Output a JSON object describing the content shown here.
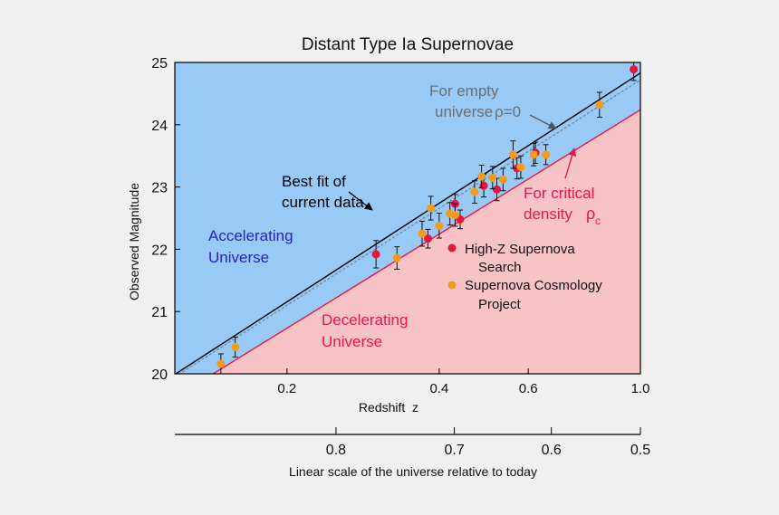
{
  "chart_data": {
    "type": "scatter",
    "title": "Distant Type Ia Supernovae",
    "xlabel": "Redshift  z",
    "ylabel": "Observed Magnitude",
    "x_scale": "log",
    "xlim": [
      0.12,
      1.0
    ],
    "ylim": [
      20,
      25
    ],
    "x_ticks": [
      0.2,
      0.4,
      0.6,
      1.0
    ],
    "x_tick_labels": [
      "0.2",
      "0.4",
      "0.6",
      "1.0"
    ],
    "y_ticks": [
      20,
      21,
      22,
      23,
      24,
      25
    ],
    "y_tick_labels": [
      "20",
      "21",
      "22",
      "23",
      "24",
      "25"
    ],
    "secondary_axis": {
      "label": "Linear scale of the universe relative to today",
      "ticks": [
        0.8,
        0.7,
        0.6,
        0.5
      ],
      "tick_labels": [
        "0.8",
        "0.7",
        "0.6",
        "0.5"
      ]
    },
    "colors": {
      "accelerating": "#99c9f5",
      "decelerating": "#f8c3c5",
      "best_fit": "#000000",
      "empty_universe": "#6b8aa0",
      "critical_density": "#e8174a",
      "high_z": "#e6163f",
      "scp": "#f39c1c",
      "accelerating_text": "#2a21c8",
      "decelerating_text": "#e8174a",
      "empty_text": "#6e6e6e"
    },
    "lines": [
      {
        "key": "best_fit",
        "points": [
          [
            0.12,
            19.99
          ],
          [
            1.0,
            24.83
          ]
        ]
      },
      {
        "key": "empty_universe",
        "points": [
          [
            0.12,
            19.95
          ],
          [
            1.0,
            24.72
          ]
        ]
      },
      {
        "key": "critical_density",
        "points": [
          [
            0.12,
            19.62
          ],
          [
            1.0,
            24.24
          ]
        ]
      }
    ],
    "series": [
      {
        "key": "high_z",
        "name": "High-Z Supernova\nSearch",
        "points": [
          {
            "x": 0.3,
            "y": 21.92,
            "err": 0.22
          },
          {
            "x": 0.38,
            "y": 22.17,
            "err": 0.15
          },
          {
            "x": 0.43,
            "y": 22.73,
            "err": 0.15
          },
          {
            "x": 0.44,
            "y": 22.48,
            "err": 0.15
          },
          {
            "x": 0.49,
            "y": 23.02,
            "err": 0.18
          },
          {
            "x": 0.52,
            "y": 22.96,
            "err": 0.18
          },
          {
            "x": 0.57,
            "y": 23.3,
            "err": 0.17
          },
          {
            "x": 0.62,
            "y": 23.55,
            "err": 0.17
          },
          {
            "x": 0.97,
            "y": 24.89,
            "err": 0.18
          }
        ]
      },
      {
        "key": "scp",
        "name": "Supernova Cosmology\nProject",
        "points": [
          {
            "x": 0.148,
            "y": 20.16,
            "err": 0.16
          },
          {
            "x": 0.158,
            "y": 20.43,
            "err": 0.16
          },
          {
            "x": 0.33,
            "y": 21.86,
            "err": 0.18
          },
          {
            "x": 0.37,
            "y": 22.25,
            "err": 0.2
          },
          {
            "x": 0.385,
            "y": 22.66,
            "err": 0.19
          },
          {
            "x": 0.4,
            "y": 22.38,
            "err": 0.2
          },
          {
            "x": 0.42,
            "y": 22.57,
            "err": 0.18
          },
          {
            "x": 0.43,
            "y": 22.55,
            "err": 0.18
          },
          {
            "x": 0.47,
            "y": 22.92,
            "err": 0.18
          },
          {
            "x": 0.485,
            "y": 23.17,
            "err": 0.18
          },
          {
            "x": 0.51,
            "y": 23.15,
            "err": 0.18
          },
          {
            "x": 0.535,
            "y": 23.12,
            "err": 0.18
          },
          {
            "x": 0.56,
            "y": 23.52,
            "err": 0.22
          },
          {
            "x": 0.58,
            "y": 23.32,
            "err": 0.18
          },
          {
            "x": 0.615,
            "y": 23.52,
            "err": 0.18
          },
          {
            "x": 0.65,
            "y": 23.52,
            "err": 0.16
          },
          {
            "x": 0.83,
            "y": 24.32,
            "err": 0.2
          }
        ]
      }
    ],
    "annotations": {
      "empty_line1": "For empty",
      "empty_line2": "universe",
      "empty_rho": "ρ=0",
      "best_fit_line1": "Best fit of",
      "best_fit_line2": "current data",
      "critical_line1": "For critical",
      "critical_line2": "density",
      "critical_rho": "ρ",
      "critical_sub": "c",
      "accelerating_line1": "Accelerating",
      "accelerating_line2": "Universe",
      "decelerating_line1": "Decelerating",
      "decelerating_line2": "Universe"
    },
    "legend": {
      "placement": "lower-right",
      "items": [
        {
          "key": "high_z",
          "line1": "High-Z Supernova",
          "line2": "Search"
        },
        {
          "key": "scp",
          "line1": "Supernova Cosmology",
          "line2": "Project"
        }
      ]
    }
  }
}
